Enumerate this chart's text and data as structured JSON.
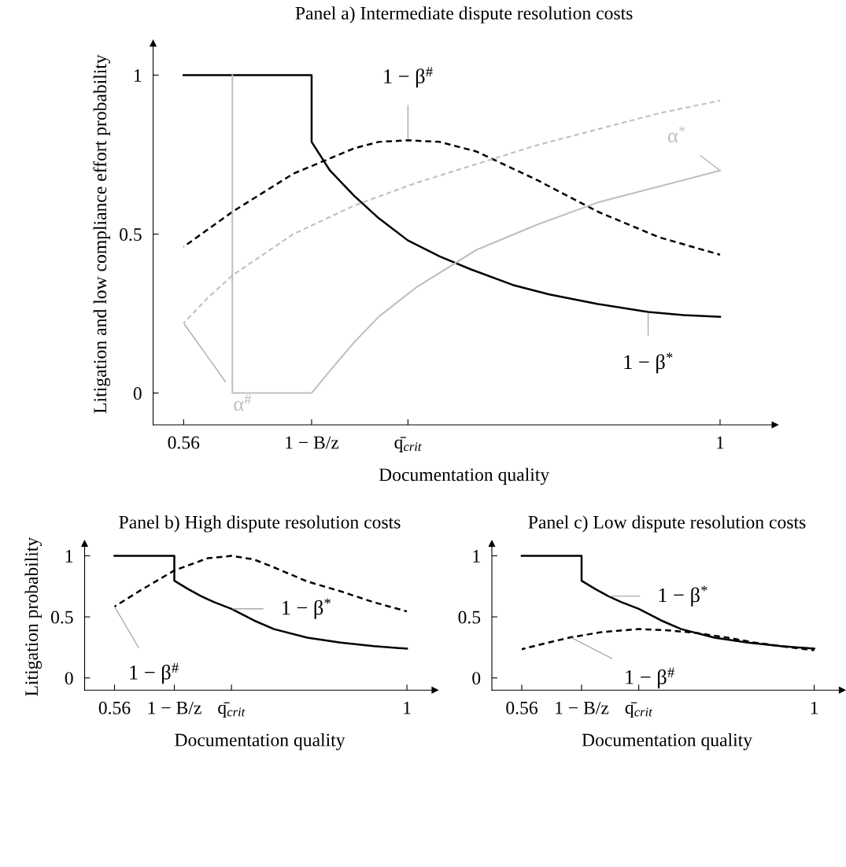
{
  "chart_data": [
    {
      "type": "line",
      "title": "Panel a) Intermediate dispute resolution costs",
      "xlabel": "Documentation quality",
      "ylabel": "Litigation and low compliance effort probability",
      "xlim": [
        0.535,
        1.045
      ],
      "ylim": [
        -0.1,
        1.1
      ],
      "xticks": [
        0.56,
        {
          "value": 0.665,
          "label": "1 − B/z"
        },
        {
          "value": 0.744,
          "label": "q̄$_{crit}$"
        },
        1
      ],
      "yticks": [
        0,
        0.5,
        1
      ],
      "grid": false,
      "legend": false,
      "series": [
        {
          "color": "#000000",
          "line_style": "solid",
          "x": [
            0.56,
            0.665,
            0.665,
            0.68,
            0.7,
            0.72,
            0.744,
            0.77,
            0.795,
            0.83,
            0.86,
            0.9,
            0.941,
            0.97,
            1
          ],
          "values": [
            1,
            1,
            0.79,
            0.7,
            0.62,
            0.55,
            0.48,
            0.43,
            0.39,
            0.34,
            0.31,
            0.28,
            0.255,
            0.245,
            0.24
          ]
        },
        {
          "color": "#000000",
          "line_style": "dashed",
          "x": [
            0.56,
            0.6,
            0.65,
            0.7,
            0.72,
            0.744,
            0.77,
            0.8,
            0.85,
            0.9,
            0.95,
            1
          ],
          "values": [
            0.46,
            0.57,
            0.69,
            0.77,
            0.79,
            0.795,
            0.79,
            0.76,
            0.67,
            0.57,
            0.49,
            0.435
          ]
        },
        {
          "color": "#bfbfbf",
          "line_style": "solid",
          "x": [
            0.6,
            0.6,
            0.665,
            0.68,
            0.7,
            0.72,
            0.75,
            0.8,
            0.85,
            0.9,
            0.95,
            1
          ],
          "values": [
            1,
            0,
            0,
            0.07,
            0.16,
            0.24,
            0.33,
            0.45,
            0.53,
            0.6,
            0.65,
            0.7
          ]
        },
        {
          "color": "#bfbfbf",
          "line_style": "dashed",
          "x": [
            0.56,
            0.58,
            0.6,
            0.65,
            0.7,
            0.75,
            0.8,
            0.85,
            0.9,
            0.95,
            1
          ],
          "values": [
            0.22,
            0.3,
            0.37,
            0.5,
            0.59,
            0.66,
            0.72,
            0.78,
            0.83,
            0.88,
            0.92
          ]
        }
      ],
      "annotations": [
        {
          "text": "1 − β$^{*}$",
          "x": 0.941,
          "y": 0.255
        },
        {
          "text": "1 − β$^{#}$",
          "x": 0.744,
          "y": 0.795
        },
        {
          "text": "α$^{*}$",
          "x": 1,
          "y": 0.7
        },
        {
          "text": "α$^{#}$",
          "x": 0.56,
          "y": 0.22
        }
      ]
    },
    {
      "type": "line",
      "title": "Panel b) High dispute resolution costs",
      "xlabel": "Documentation quality",
      "ylabel": "Litigation probability",
      "xlim": [
        0.515,
        1.042
      ],
      "ylim": [
        -0.1,
        1.1
      ],
      "xticks": [
        0.56,
        {
          "value": 0.65,
          "label": "1 − B/z"
        },
        {
          "value": 0.736,
          "label": "q̄$_{crit}$"
        },
        1
      ],
      "yticks": [
        0,
        0.5,
        1
      ],
      "grid": false,
      "legend": false,
      "series": [
        {
          "color": "#000000",
          "line_style": "solid",
          "x": [
            0.56,
            0.65,
            0.65,
            0.67,
            0.69,
            0.71,
            0.736,
            0.77,
            0.8,
            0.85,
            0.9,
            0.95,
            1
          ],
          "values": [
            1,
            1,
            0.796,
            0.73,
            0.67,
            0.62,
            0.566,
            0.47,
            0.4,
            0.33,
            0.29,
            0.26,
            0.24
          ]
        },
        {
          "color": "#000000",
          "line_style": "dashed",
          "x": [
            0.56,
            0.6,
            0.65,
            0.7,
            0.736,
            0.77,
            0.8,
            0.85,
            0.9,
            0.95,
            1
          ],
          "values": [
            0.584,
            0.72,
            0.88,
            0.98,
            1.0,
            0.97,
            0.905,
            0.79,
            0.71,
            0.62,
            0.545
          ]
        }
      ],
      "annotations": [
        {
          "text": "1 − β$^{*}$",
          "x": 0.736,
          "y": 0.566
        },
        {
          "text": "1 − β$^{#}$",
          "x": 0.56,
          "y": 0.584
        }
      ]
    },
    {
      "type": "line",
      "title": "Panel c) Low dispute resolution costs",
      "xlabel": "Documentation quality",
      "xlim": [
        0.515,
        1.042
      ],
      "ylim": [
        -0.1,
        1.1
      ],
      "xticks": [
        0.56,
        {
          "value": 0.65,
          "label": "1 − B/z"
        },
        {
          "value": 0.736,
          "label": "q̄$_{crit}$"
        },
        1
      ],
      "yticks": [
        0,
        0.5,
        1
      ],
      "grid": false,
      "legend": false,
      "series": [
        {
          "color": "#000000",
          "line_style": "solid",
          "x": [
            0.56,
            0.65,
            0.65,
            0.67,
            0.69,
            0.71,
            0.736,
            0.77,
            0.8,
            0.85,
            0.9,
            0.95,
            1
          ],
          "values": [
            1,
            1,
            0.796,
            0.73,
            0.67,
            0.62,
            0.566,
            0.47,
            0.4,
            0.33,
            0.29,
            0.26,
            0.24
          ]
        },
        {
          "color": "#000000",
          "line_style": "dashed",
          "x": [
            0.56,
            0.6,
            0.634,
            0.68,
            0.736,
            0.78,
            0.82,
            0.87,
            0.91,
            0.95,
            1
          ],
          "values": [
            0.235,
            0.29,
            0.333,
            0.375,
            0.4,
            0.39,
            0.37,
            0.33,
            0.29,
            0.26,
            0.226
          ]
        }
      ],
      "annotations": [
        {
          "text": "1 − β$^{*}$",
          "x": 0.69,
          "y": 0.67
        },
        {
          "text": "1 − β$^{#}$",
          "x": 0.634,
          "y": 0.333
        }
      ]
    }
  ]
}
